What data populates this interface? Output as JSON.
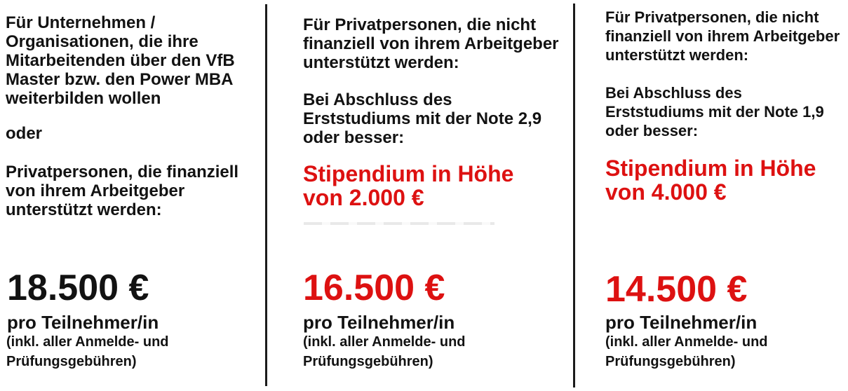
{
  "colors": {
    "background": "#ffffff",
    "text_black": "#121212",
    "accent_red": "#dd1111",
    "divider": "#1b1b1b"
  },
  "columns": [
    {
      "audience": "Für Unternehmen /\nOrganisationen, die ihre\nMitarbeitenden über den VfB\nMaster bzw. den Power MBA\nweiterbilden wollen",
      "connector": "oder",
      "audience_alt": "Privatpersonen, die finanziell\nvon ihrem Arbeitgeber\nunterstützt werden:",
      "price": "18.500 €",
      "price_color": "#121212",
      "per_participant": "pro Teilnehmer/in",
      "fees_note": "(inkl. aller Anmelde- und\nPrüfungsgebühren)"
    },
    {
      "audience": "Für Privatpersonen, die nicht\nfinanziell von ihrem Arbeitgeber\nunterstützt werden:",
      "condition": "Bei Abschluss des\nErststudiums mit der Note 2,9\noder besser:",
      "scholarship": "Stipendium in Höhe\nvon 2.000 €",
      "scholarship_color": "#dd1111",
      "price": "16.500 €",
      "price_color": "#dd1111",
      "per_participant": "pro Teilnehmer/in",
      "fees_note": "(inkl. aller Anmelde- und\nPrüfungsgebühren)"
    },
    {
      "audience": "Für Privatpersonen, die nicht\nfinanziell von ihrem Arbeitgeber\nunterstützt werden:",
      "condition": "Bei Abschluss des\nErststudiums mit der Note 1,9\noder besser:",
      "scholarship": "Stipendium in Höhe\nvon 4.000 €",
      "scholarship_color": "#dd1111",
      "price": "14.500 €",
      "price_color": "#dd1111",
      "per_participant": "pro Teilnehmer/in",
      "fees_note": "(inkl. aller Anmelde- und\nPrüfungsgebühren)"
    }
  ]
}
